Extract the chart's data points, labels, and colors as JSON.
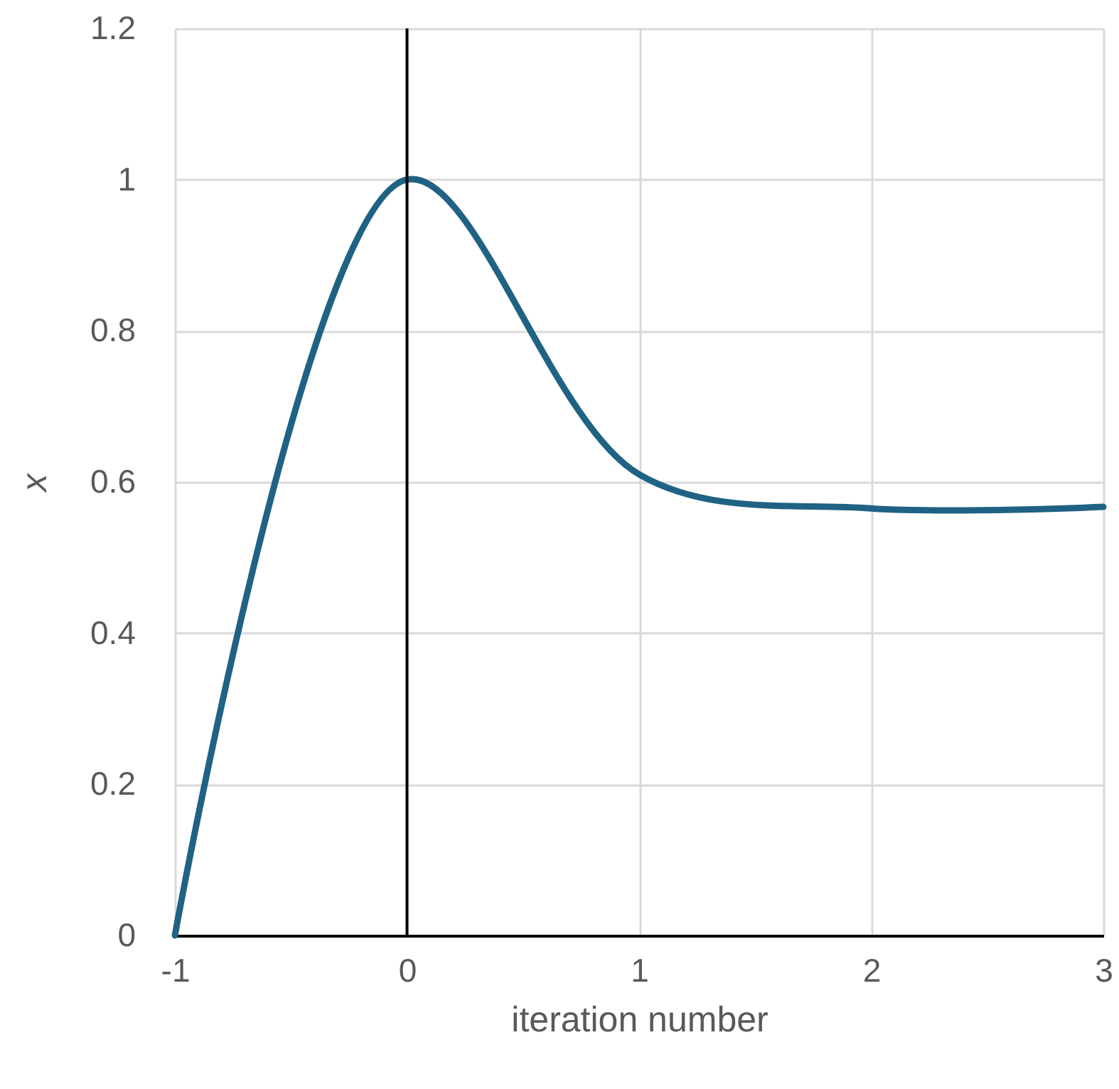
{
  "chart_data": {
    "type": "line",
    "xlabel": "iteration number",
    "ylabel": "x",
    "x": [
      -1,
      0,
      1,
      2,
      3
    ],
    "series": [
      {
        "color": "#1f6284",
        "values": [
          0,
          1,
          0.61,
          0.565,
          0.567
        ]
      }
    ],
    "xlim": [
      -1,
      3
    ],
    "xticks": [
      -1,
      0,
      1,
      2,
      3
    ],
    "ylim": [
      0,
      1.2
    ],
    "yticks": [
      0,
      0.2,
      0.4,
      0.6,
      0.8,
      1,
      1.2
    ],
    "grid": true,
    "marker": "none",
    "line_style": "solid",
    "ref_lines": [
      {
        "axis": "x",
        "value": 0,
        "color": "#000000"
      }
    ]
  }
}
